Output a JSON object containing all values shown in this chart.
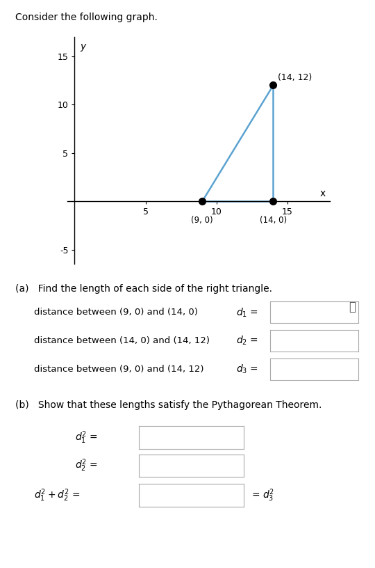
{
  "title": "Consider the following graph.",
  "points": {
    "A": [
      9,
      0
    ],
    "B": [
      14,
      0
    ],
    "C": [
      14,
      12
    ]
  },
  "triangle_color": "#5ba3d0",
  "point_color": "black",
  "point_size": 7,
  "xlim": [
    -0.5,
    18
  ],
  "ylim": [
    -6.5,
    17
  ],
  "xticks": [
    5,
    10,
    15
  ],
  "yticks": [
    -5,
    5,
    10,
    15
  ],
  "xlabel": "x",
  "ylabel": "y",
  "C_label": "(14, 12)",
  "A_label": "(9, 0)",
  "B_label": "(14, 0)",
  "section_a_title": "(a)   Find the length of each side of the right triangle.",
  "section_b_title": "(b)   Show that these lengths satisfy the Pythagorean Theorem.",
  "row_a_labels": [
    "distance between (9, 0) and (14, 0)",
    "distance between (14, 0) and (14, 12)",
    "distance between (9, 0) and (14, 12)"
  ],
  "row_a_vars": [
    "$d_1$",
    "$d_2$",
    "$d_3$"
  ],
  "row_b_labels": [
    "$d_1^2$",
    "$d_2^2$",
    "$d_1^2 + d_2^2$"
  ],
  "row_b_suffix": "= $d_3^2$",
  "bg_color": "#ffffff",
  "text_color": "#000000",
  "box_edge_color": "#aaaaaa",
  "info_icon": "ⓘ"
}
